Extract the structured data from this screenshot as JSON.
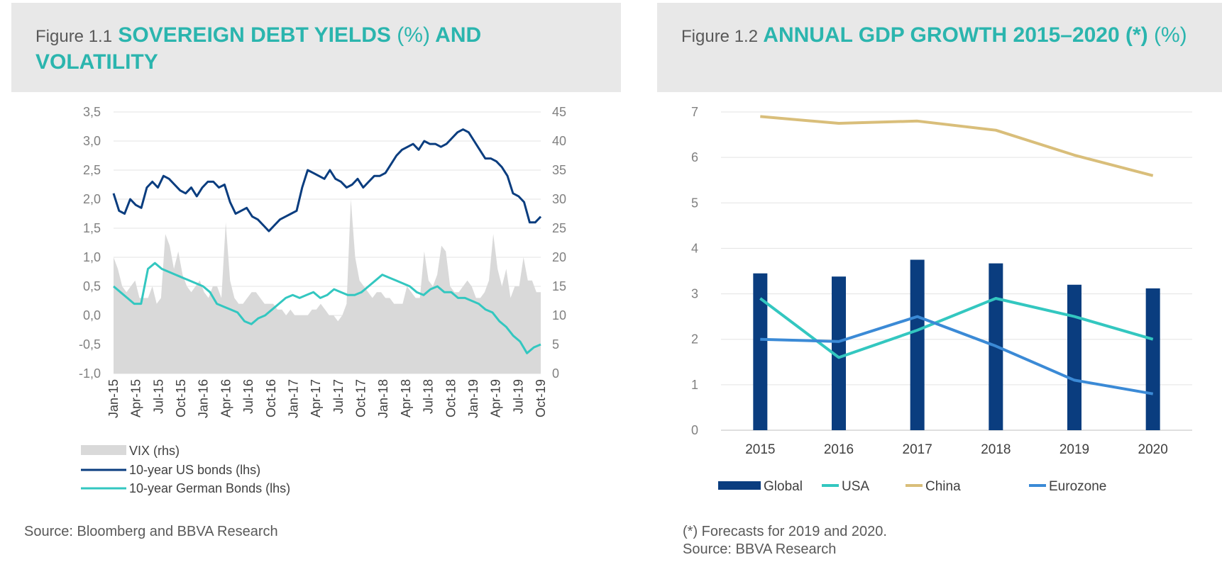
{
  "figures": [
    {
      "number": "Figure 1.1",
      "title_part1": "SOVEREIGN DEBT YIELDS",
      "title_part2": "(%)",
      "title_part3": "AND VOLATILITY",
      "source": "Source: Bloomberg and BBVA Research"
    },
    {
      "number": "Figure 1.2",
      "title_part1": "ANNUAL GDP GROWTH 2015–2020 (*)",
      "title_part2": "(%)",
      "note": "(*) Forecasts for 2019 and 2020.",
      "source": "Source: BBVA Research"
    }
  ],
  "chart_data": [
    {
      "type": "line",
      "title": "SOVEREIGN DEBT YIELDS (%) AND VOLATILITY",
      "ylim_left": [
        -1.0,
        3.5
      ],
      "ylim_right": [
        0,
        45
      ],
      "yticks_left": [
        "3,5",
        "3,0",
        "2,5",
        "2,0",
        "1,5",
        "1,0",
        "0,5",
        "0,0",
        "-0,5",
        "-1,0"
      ],
      "yticks_right": [
        "45",
        "40",
        "35",
        "30",
        "25",
        "20",
        "15",
        "10",
        "5",
        "0"
      ],
      "x_tick_labels": [
        "Jan-15",
        "Apr-15",
        "Jul-15",
        "Oct-15",
        "Jan-16",
        "Apr-16",
        "Jul-16",
        "Oct-16",
        "Jan-17",
        "Apr-17",
        "Jul-17",
        "Oct-17",
        "Jan-18",
        "Apr-18",
        "Jul-18",
        "Oct-18",
        "Jan-19",
        "Apr-19",
        "Jul-19",
        "Oct-19"
      ],
      "grid": true,
      "legend_position": "bottom-left",
      "series": [
        {
          "name": "VIX  (rhs)",
          "axis": "right",
          "kind": "area",
          "color": "#d9d9d9",
          "values": [
            20,
            18,
            15,
            14,
            15,
            16,
            13,
            13,
            13,
            15,
            12,
            13,
            24,
            22,
            18,
            21,
            17,
            15,
            14,
            15,
            16,
            14,
            13,
            15,
            15,
            13,
            26,
            16,
            13,
            12,
            12,
            13,
            14,
            14,
            13,
            12,
            12,
            12,
            11,
            11,
            10,
            11,
            10,
            10,
            10,
            10,
            11,
            11,
            12,
            11,
            10,
            10,
            9,
            10,
            12,
            30,
            20,
            16,
            15,
            14,
            13,
            14,
            14,
            13,
            13,
            12,
            12,
            12,
            15,
            14,
            13,
            13,
            21,
            16,
            15,
            17,
            22,
            21,
            15,
            14,
            14,
            15,
            16,
            15,
            13,
            13,
            14,
            16,
            24,
            18,
            15,
            18,
            13,
            15,
            15,
            20,
            16,
            16,
            14,
            14
          ]
        },
        {
          "name": "10-year US bonds (lhs)",
          "axis": "left",
          "kind": "line",
          "color": "#0a3d7f",
          "values": [
            2.1,
            1.8,
            1.75,
            2.0,
            1.9,
            1.85,
            2.2,
            2.3,
            2.2,
            2.4,
            2.35,
            2.25,
            2.15,
            2.1,
            2.2,
            2.05,
            2.2,
            2.3,
            2.3,
            2.2,
            2.25,
            1.95,
            1.75,
            1.8,
            1.85,
            1.7,
            1.65,
            1.55,
            1.45,
            1.55,
            1.65,
            1.7,
            1.75,
            1.8,
            2.2,
            2.5,
            2.45,
            2.4,
            2.35,
            2.5,
            2.35,
            2.3,
            2.2,
            2.25,
            2.35,
            2.2,
            2.3,
            2.4,
            2.4,
            2.45,
            2.6,
            2.75,
            2.85,
            2.9,
            2.95,
            2.85,
            3.0,
            2.95,
            2.95,
            2.9,
            2.95,
            3.05,
            3.15,
            3.2,
            3.15,
            3.0,
            2.85,
            2.7,
            2.7,
            2.65,
            2.55,
            2.4,
            2.1,
            2.05,
            1.95,
            1.6,
            1.6,
            1.7
          ]
        },
        {
          "name": "10-year German Bonds (lhs)",
          "axis": "left",
          "kind": "line",
          "color": "#33c7c0",
          "values": [
            0.5,
            0.4,
            0.3,
            0.2,
            0.2,
            0.8,
            0.9,
            0.8,
            0.75,
            0.7,
            0.65,
            0.6,
            0.55,
            0.5,
            0.4,
            0.2,
            0.15,
            0.1,
            0.05,
            -0.1,
            -0.15,
            -0.05,
            0.0,
            0.1,
            0.2,
            0.3,
            0.35,
            0.3,
            0.35,
            0.4,
            0.3,
            0.35,
            0.45,
            0.4,
            0.35,
            0.35,
            0.4,
            0.5,
            0.6,
            0.7,
            0.65,
            0.6,
            0.55,
            0.5,
            0.4,
            0.35,
            0.45,
            0.5,
            0.4,
            0.4,
            0.3,
            0.3,
            0.25,
            0.2,
            0.1,
            0.05,
            -0.1,
            -0.2,
            -0.35,
            -0.45,
            -0.65,
            -0.55,
            -0.5
          ]
        }
      ]
    },
    {
      "type": "bar",
      "title": "ANNUAL GDP GROWTH 2015–2020 (*) (%)",
      "categories": [
        "2015",
        "2016",
        "2017",
        "2018",
        "2019",
        "2020"
      ],
      "ylim": [
        0,
        7
      ],
      "yticks": [
        "7",
        "6",
        "5",
        "4",
        "3",
        "2",
        "1",
        "0"
      ],
      "grid": true,
      "legend_position": "bottom",
      "series": [
        {
          "name": "Global",
          "kind": "bar",
          "color": "#0a3d7f",
          "values": [
            3.45,
            3.38,
            3.75,
            3.67,
            3.2,
            3.12
          ]
        },
        {
          "name": "USA",
          "kind": "line",
          "color": "#33c7c0",
          "values": [
            2.9,
            1.6,
            2.2,
            2.9,
            2.5,
            2.0
          ]
        },
        {
          "name": "China",
          "kind": "line",
          "color": "#d9be7a",
          "values": [
            6.9,
            6.75,
            6.8,
            6.6,
            6.05,
            5.6
          ]
        },
        {
          "name": "Eurozone",
          "kind": "line",
          "color": "#3b8ad6",
          "values": [
            2.0,
            1.95,
            2.5,
            1.85,
            1.1,
            0.8
          ]
        }
      ]
    }
  ]
}
